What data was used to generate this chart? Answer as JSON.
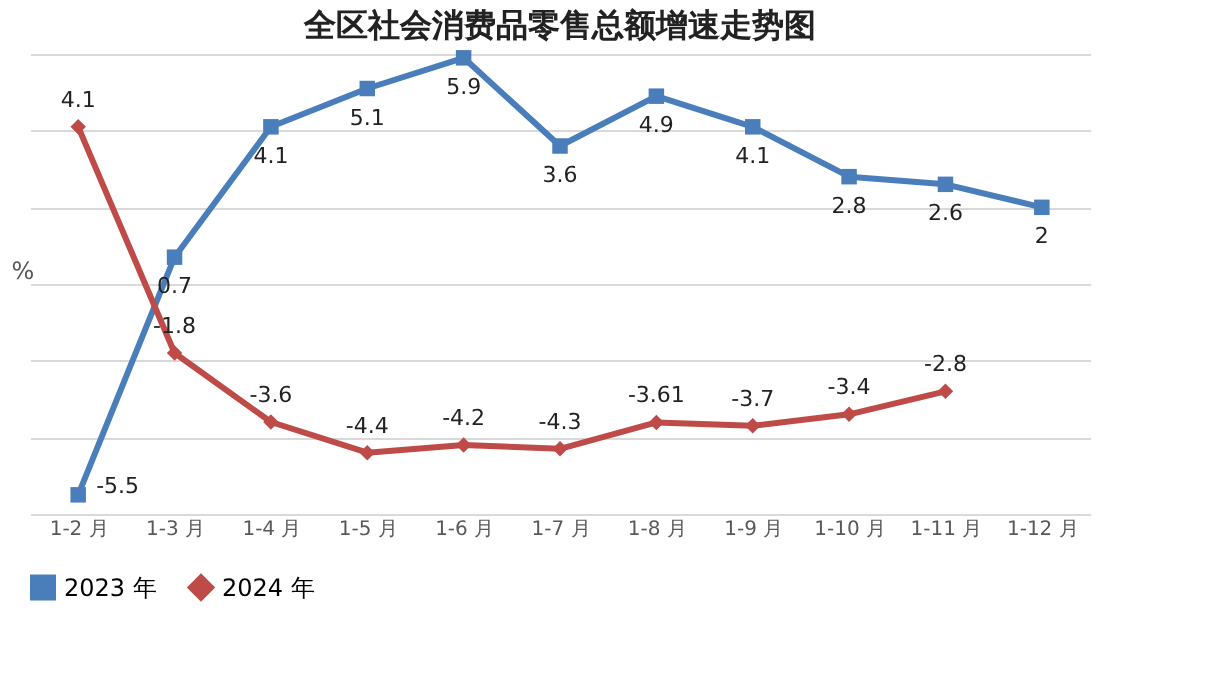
{
  "chart_data": {
    "type": "line",
    "title": "全区社会消费品零售总额增速走势图",
    "ylabel": "%",
    "categories": [
      "1-2 月",
      "1-3 月",
      "1-4 月",
      "1-5 月",
      "1-6 月",
      "1-7 月",
      "1-8 月",
      "1-9 月",
      "1-10 月",
      "1-11 月",
      "1-12 月"
    ],
    "series": [
      {
        "name": "2023 年",
        "color": "#4a7ebb",
        "marker": "square",
        "values": [
          -5.5,
          0.7,
          4.1,
          5.1,
          5.9,
          3.6,
          4.9,
          4.1,
          2.8,
          2.6,
          2
        ]
      },
      {
        "name": "2024 年",
        "color": "#be4b48",
        "marker": "diamond",
        "values": [
          4.1,
          -1.8,
          -3.6,
          -4.4,
          -4.2,
          -4.3,
          -3.61,
          -3.7,
          -3.4,
          -2.8,
          null
        ]
      }
    ],
    "ylim": [
      -6,
      6
    ],
    "grid": "y",
    "legend": "bottom",
    "data_labels": true,
    "line_style": "solid"
  }
}
